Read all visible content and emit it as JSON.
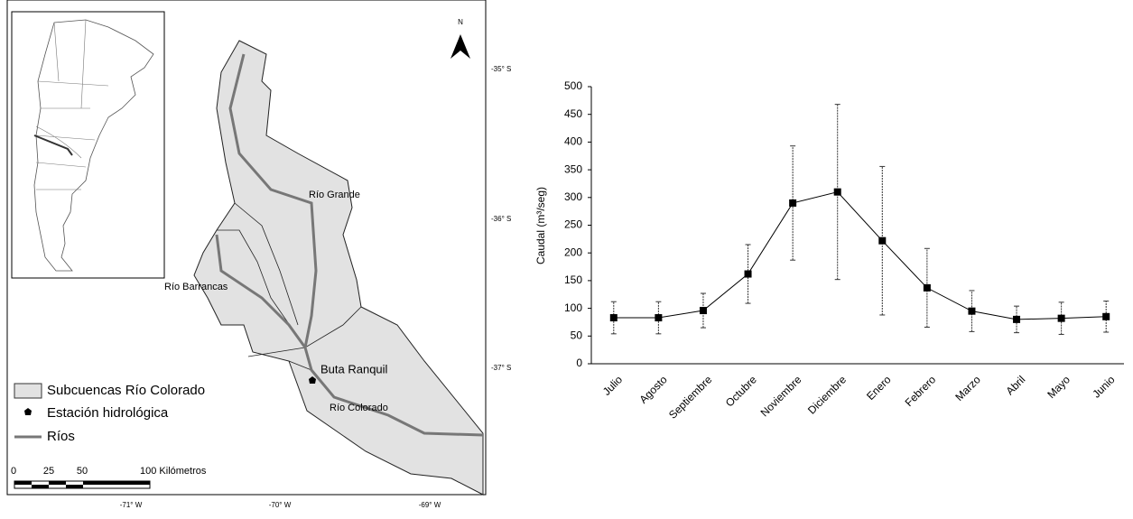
{
  "map": {
    "north": "N",
    "lat_labels": [
      "-35° S",
      "-36° S",
      "-37° S"
    ],
    "lon_labels": [
      "-71° W",
      "-70° W",
      "-69° W"
    ],
    "rivers": [
      "Río Grande",
      "Río Barrancas",
      "Río Colorado"
    ],
    "station": "Buta Ranquil",
    "legend": [
      "Subcuencas Río Colorado",
      "Estación hidrológica",
      "Ríos"
    ],
    "scale": [
      "0",
      "25",
      "50",
      "100 Kilómetros"
    ]
  },
  "chart_data": {
    "type": "line",
    "y_label": "Caudal (m³/seg)",
    "categories": [
      "Julio",
      "Agosto",
      "Septiembre",
      "Octubre",
      "Noviembre",
      "Diciembre",
      "Enero",
      "Febrero",
      "Marzo",
      "Abril",
      "Mayo",
      "Junio"
    ],
    "values": [
      83,
      83,
      96,
      162,
      290,
      310,
      222,
      137,
      95,
      80,
      82,
      85
    ],
    "errors": [
      29,
      29,
      31,
      53,
      103,
      158,
      134,
      71,
      37,
      24,
      29,
      28
    ],
    "color": "#000000",
    "ylim": [
      0,
      500
    ],
    "yticks": [
      0,
      50,
      100,
      150,
      200,
      250,
      300,
      350,
      400,
      450,
      500
    ],
    "grid": false
  }
}
